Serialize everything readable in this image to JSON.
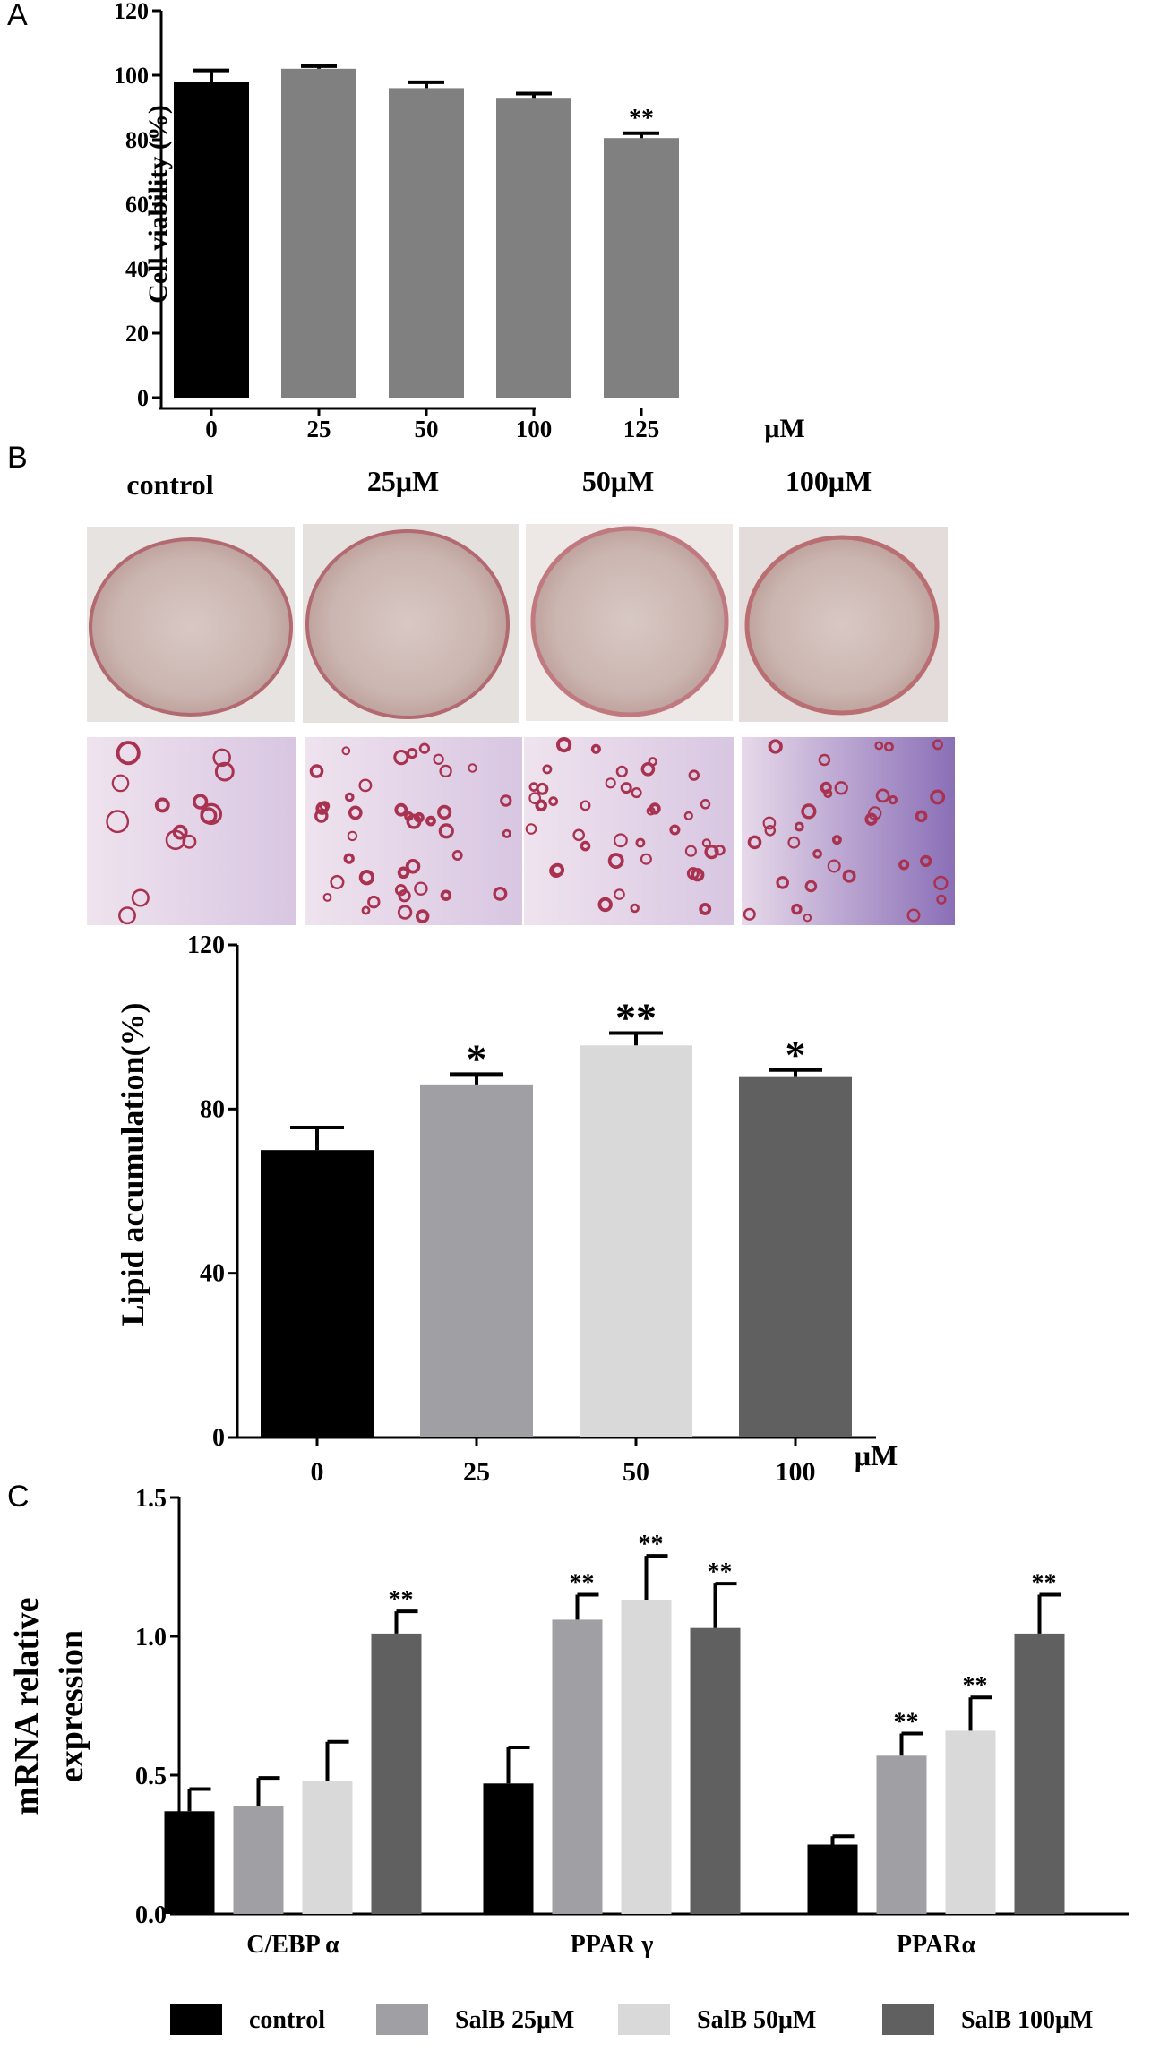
{
  "panels": {
    "a_letter": "A",
    "b_letter": "B",
    "c_letter": "C",
    "b_image_labels": [
      "control",
      "25μM",
      "50μM",
      "100μM"
    ]
  },
  "colors": {
    "black": "#000000",
    "gray_a": "#808080",
    "gray_25": "#a0a0a4",
    "gray_50": "#d9d9d9",
    "gray_100": "#606060"
  },
  "chart_data": [
    {
      "id": "panelA",
      "type": "bar",
      "ylabel": "Cell viability (%)",
      "xunit": "μM",
      "categories": [
        "0",
        "25",
        "50",
        "100",
        "125"
      ],
      "values": [
        98,
        102,
        96,
        93,
        80.5
      ],
      "errors": [
        3.5,
        0.8,
        1.8,
        1.3,
        1.5
      ],
      "significance": [
        "",
        "",
        "",
        "",
        "**"
      ],
      "bar_colors": [
        "#000000",
        "#808080",
        "#808080",
        "#808080",
        "#808080"
      ],
      "ylim": [
        0,
        120
      ],
      "yticks": [
        0,
        20,
        40,
        60,
        80,
        100,
        120
      ]
    },
    {
      "id": "panelB",
      "type": "bar",
      "ylabel": "Lipid accumulation(%)",
      "xunit": "μM",
      "categories": [
        "0",
        "25",
        "50",
        "100"
      ],
      "values": [
        70,
        86,
        95.5,
        88
      ],
      "errors": [
        5.5,
        2.5,
        3,
        1.5
      ],
      "significance": [
        "",
        "*",
        "**",
        "*"
      ],
      "bar_colors": [
        "#000000",
        "#a0a0a4",
        "#d9d9d9",
        "#606060"
      ],
      "ylim": [
        0,
        120
      ],
      "yticks": [
        0,
        40,
        80,
        120
      ]
    },
    {
      "id": "panelC",
      "type": "bar",
      "ylabel_lines": [
        "mRNA relative",
        "expression"
      ],
      "groups": [
        "C/EBP α",
        "PPAR γ",
        "PPARα"
      ],
      "series": [
        {
          "name": "control",
          "color": "#000000",
          "values": [
            0.37,
            0.47,
            0.25
          ],
          "errors": [
            0.08,
            0.13,
            0.03
          ],
          "significance": [
            "",
            "",
            ""
          ]
        },
        {
          "name": "SalB 25μM",
          "color": "#a0a0a4",
          "values": [
            0.39,
            1.06,
            0.57
          ],
          "errors": [
            0.1,
            0.09,
            0.08
          ],
          "significance": [
            "",
            "**",
            "**"
          ]
        },
        {
          "name": "SalB 50μM",
          "color": "#d9d9d9",
          "values": [
            0.48,
            1.13,
            0.66
          ],
          "errors": [
            0.14,
            0.16,
            0.12
          ],
          "significance": [
            "",
            "**",
            "**"
          ]
        },
        {
          "name": "SalB 100μM",
          "color": "#606060",
          "values": [
            1.01,
            1.03,
            1.01
          ],
          "errors": [
            0.08,
            0.16,
            0.14
          ],
          "significance": [
            "**",
            "**",
            "**"
          ]
        }
      ],
      "ylim": [
        0,
        1.5
      ],
      "yticks": [
        "0.0",
        "0.5",
        "1.0",
        "1.5"
      ]
    }
  ]
}
